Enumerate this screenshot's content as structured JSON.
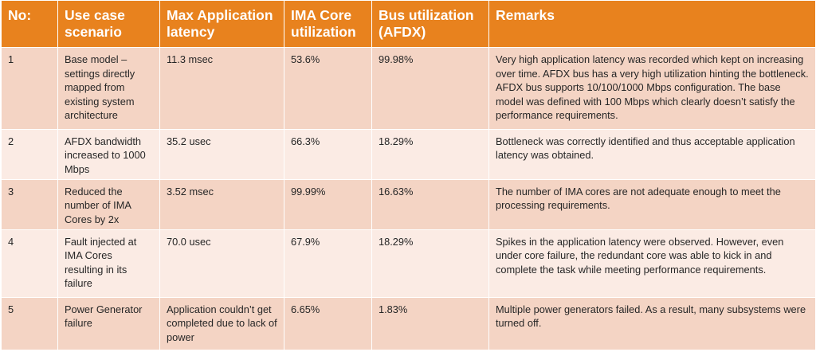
{
  "table": {
    "headers": [
      "No:",
      "Use case scenario",
      "Max Application latency",
      "IMA Core utilization",
      "Bus utilization (AFDX)",
      "Remarks"
    ],
    "rows": [
      {
        "no": "1",
        "scenario": "Base model – settings directly mapped from existing system architecture",
        "latency": "11.3 msec",
        "core": "53.6%",
        "bus": "99.98%",
        "remarks": "Very high application latency was recorded which kept on increasing over time. AFDX bus has a very high utilization hinting the bottleneck. AFDX bus supports 10/100/1000 Mbps configuration. The base model was defined with 100 Mbps which clearly doesn’t satisfy the performance requirements."
      },
      {
        "no": "2",
        "scenario": "AFDX bandwidth increased to 1000 Mbps",
        "latency": "35.2 usec",
        "core": "66.3%",
        "bus": "18.29%",
        "remarks": "Bottleneck was correctly identified and thus acceptable application latency was obtained."
      },
      {
        "no": "3",
        "scenario": "Reduced the number of IMA Cores by 2x",
        "latency": "3.52 msec",
        "core": "99.99%",
        "bus": "16.63%",
        "remarks": "The number of IMA cores are not adequate enough to meet the processing requirements."
      },
      {
        "no": "4",
        "scenario": "Fault injected at IMA Cores resulting in its failure",
        "latency": "70.0 usec",
        "core": "67.9%",
        "bus": "18.29%",
        "remarks": "Spikes in the application latency were observed. However, even under core failure, the redundant core was able to kick in and complete the task while meeting performance requirements."
      },
      {
        "no": "5",
        "scenario": "Power Generator failure",
        "latency": "Application couldn’t get completed due to lack of power",
        "core": "6.65%",
        "bus": "1.83%",
        "remarks": "Multiple power generators failed. As a result, many subsystems were turned off."
      }
    ]
  },
  "colors": {
    "header": "#e8821e",
    "row_odd": "#f4d4c4",
    "row_even": "#fbebe4"
  }
}
